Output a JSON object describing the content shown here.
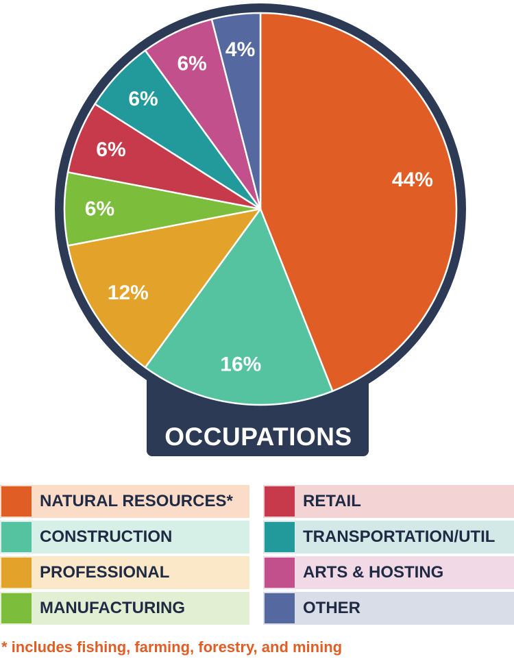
{
  "chart_data": {
    "type": "pie",
    "title": "OCCUPATIONS",
    "categories": [
      "NATURAL RESOURCES*",
      "CONSTRUCTION",
      "PROFESSIONAL",
      "MANUFACTURING",
      "RETAIL",
      "TRANSPORTATION/UTIL",
      "ARTS & HOSTING",
      "OTHER"
    ],
    "values": [
      44,
      16,
      12,
      6,
      6,
      6,
      6,
      4
    ],
    "data_labels": [
      "44%",
      "16%",
      "12%",
      "6%",
      "6%",
      "6%",
      "6%",
      "4%"
    ],
    "colors": [
      "#e05e26",
      "#55c2a0",
      "#e3a22a",
      "#7cbd3c",
      "#c63a4c",
      "#22999a",
      "#c2508c",
      "#5569a0"
    ],
    "legend_backgrounds": [
      "#fbdcc9",
      "#d6f0e7",
      "#fbe8c8",
      "#e2efd2",
      "#f3d3d3",
      "#d3e9e8",
      "#f1d9e6",
      "#d9dde8"
    ],
    "legend_placement": "bottom",
    "start": "12 o'clock, clockwise",
    "frame_color": "#2c3a56"
  },
  "footnote": "* includes fishing, farming, forestry, and mining"
}
